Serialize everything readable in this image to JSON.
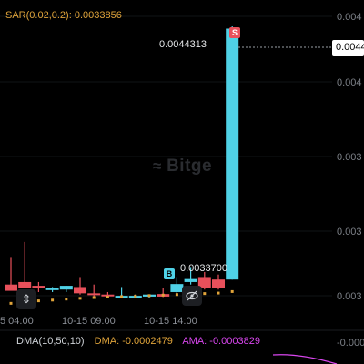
{
  "indicator": {
    "name": "SAR(0.02,0.2):",
    "value": "0.0033856"
  },
  "watermark": "Bitge",
  "price": {
    "current_tag": "0.0044",
    "high_label": "0.0044313",
    "low_label": "0.0033700"
  },
  "markers": {
    "sell": "S",
    "buy": "B"
  },
  "y_axis": {
    "labels": [
      "0.004",
      "0.004",
      "0.003",
      "0.003",
      "0.003",
      "-0.000"
    ]
  },
  "x_axis": {
    "labels": [
      "5 04:00",
      "10-15 09:00",
      "10-15 14:00"
    ]
  },
  "sub_indicator": {
    "dma": "DMA(10,50,10)",
    "dma_value": "DMA: -0.0002479",
    "ama_value": "AMA: -0.0003829"
  },
  "colors": {
    "up": "#4fd1e6",
    "down": "#e8505b",
    "sar": "#e0a43a",
    "ama": "#d946ef",
    "background": "#000000"
  },
  "icons": {
    "expand": "expand-vertical-icon",
    "hide": "eye-slash-icon"
  },
  "chart_data": {
    "type": "candlestick",
    "candles": [
      {
        "o": 0.00341,
        "h": 0.00352,
        "l": 0.003395,
        "c": 0.003385
      },
      {
        "o": 0.00342,
        "h": 0.00358,
        "l": 0.003395,
        "c": 0.003395
      },
      {
        "o": 0.003405,
        "h": 0.00342,
        "l": 0.00338,
        "c": 0.003395
      },
      {
        "o": 0.003395,
        "h": 0.0034,
        "l": 0.00338,
        "c": 0.003395
      },
      {
        "o": 0.00339,
        "h": 0.003405,
        "l": 0.00338,
        "c": 0.003405
      },
      {
        "o": 0.0034,
        "h": 0.00344,
        "l": 0.00337,
        "c": 0.003375
      },
      {
        "o": 0.003375,
        "h": 0.00341,
        "l": 0.00336,
        "c": 0.00337
      },
      {
        "o": 0.00337,
        "h": 0.00338,
        "l": 0.00336,
        "c": 0.003365
      },
      {
        "o": 0.003365,
        "h": 0.0034,
        "l": 0.00336,
        "c": 0.003365
      },
      {
        "o": 0.003365,
        "h": 0.00337,
        "l": 0.003355,
        "c": 0.003365
      },
      {
        "o": 0.003362,
        "h": 0.00337,
        "l": 0.003355,
        "c": 0.00337
      },
      {
        "o": 0.003372,
        "h": 0.003395,
        "l": 0.00336,
        "c": 0.003362
      },
      {
        "o": 0.00338,
        "h": 0.00344,
        "l": 0.00337,
        "c": 0.003412
      },
      {
        "o": 0.00342,
        "h": 0.00348,
        "l": 0.00341,
        "c": 0.003432
      },
      {
        "o": 0.00344,
        "h": 0.00346,
        "l": 0.00339,
        "c": 0.003395
      },
      {
        "o": 0.00343,
        "h": 0.00345,
        "l": 0.00339,
        "c": 0.003395
      },
      {
        "o": 0.00343,
        "h": 0.00444,
        "l": 0.00343,
        "c": 0.004431
      }
    ],
    "sar_points": [
      0.003335,
      0.00334,
      0.003345,
      0.003348,
      0.003352,
      0.003355,
      0.003358,
      0.00336,
      0.003362,
      0.003364,
      0.003366,
      0.003368,
      0.00337,
      0.003372,
      0.003374,
      0.003376,
      0.003382
    ],
    "ylim": [
      0.0033,
      0.00448
    ]
  }
}
